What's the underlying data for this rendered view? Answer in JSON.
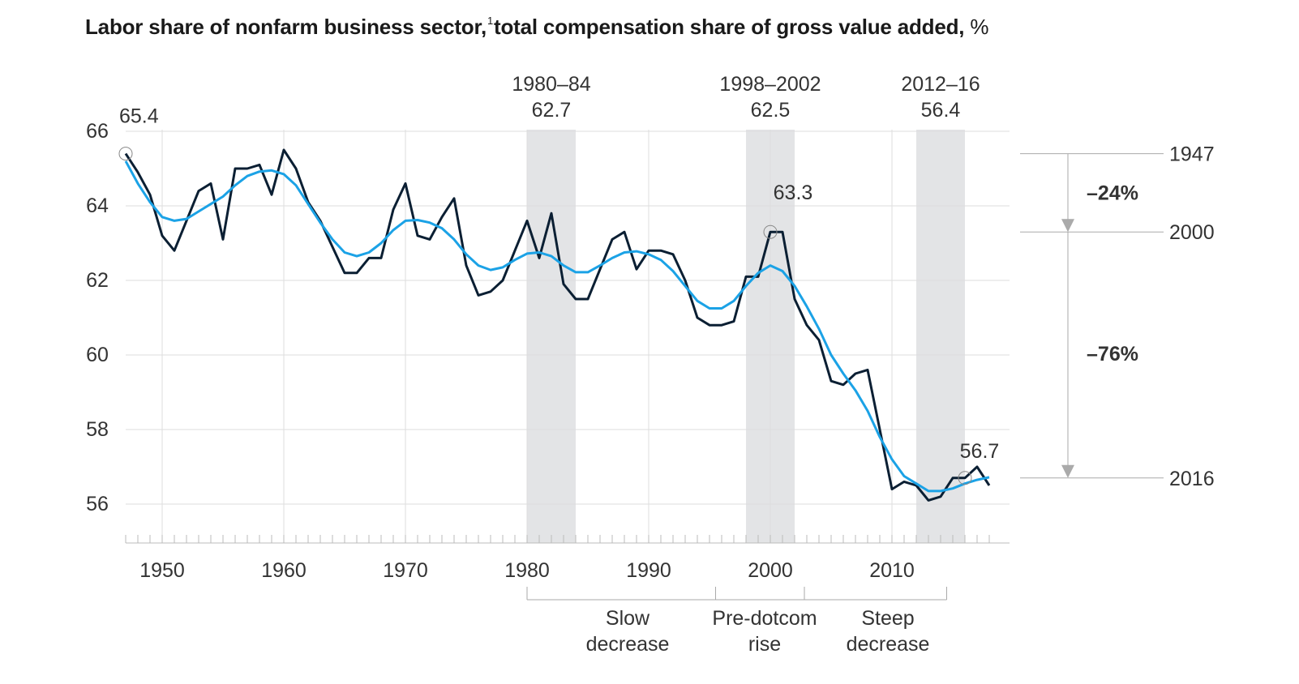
{
  "title": {
    "main": "Labor share of nonfarm business sector,",
    "footnote": "1",
    "rest": "total compensation share of gross value added,",
    "unit": "%"
  },
  "colors": {
    "actual": "#0b1f33",
    "trend": "#1ba2e6",
    "shade": "#e3e4e6",
    "grid": "#dddddd",
    "text": "#333333"
  },
  "chart_data": {
    "type": "line",
    "ylim": [
      55,
      66.5
    ],
    "xlim": [
      1946.5,
      2019
    ],
    "y_ticks": [
      "56",
      "58",
      "60",
      "62",
      "64",
      "66"
    ],
    "x_ticks": [
      "1950",
      "1960",
      "1970",
      "1980",
      "1990",
      "2000",
      "2010"
    ],
    "series": [
      {
        "key": "actual",
        "x": [
          1947,
          1948,
          1949,
          1950,
          1951,
          1952,
          1953,
          1954,
          1955,
          1956,
          1957,
          1958,
          1959,
          1960,
          1961,
          1962,
          1963,
          1964,
          1965,
          1966,
          1967,
          1968,
          1969,
          1970,
          1971,
          1972,
          1973,
          1974,
          1975,
          1976,
          1977,
          1978,
          1979,
          1980,
          1981,
          1982,
          1983,
          1984,
          1985,
          1986,
          1987,
          1988,
          1989,
          1990,
          1991,
          1992,
          1993,
          1994,
          1995,
          1996,
          1997,
          1998,
          1999,
          2000,
          2001,
          2002,
          2003,
          2004,
          2005,
          2006,
          2007,
          2008,
          2009,
          2010,
          2011,
          2012,
          2013,
          2014,
          2015,
          2016,
          2017,
          2018
        ],
        "y": [
          65.4,
          64.9,
          64.3,
          63.2,
          62.8,
          63.6,
          64.4,
          64.6,
          63.1,
          65.0,
          65.0,
          65.1,
          64.3,
          65.5,
          65.0,
          64.1,
          63.6,
          62.9,
          62.2,
          62.2,
          62.6,
          62.6,
          63.9,
          64.6,
          63.2,
          63.1,
          63.7,
          64.2,
          62.4,
          61.6,
          61.7,
          62.0,
          62.8,
          63.6,
          62.6,
          63.8,
          61.9,
          61.5,
          61.5,
          62.3,
          63.1,
          63.3,
          62.3,
          62.8,
          62.8,
          62.7,
          62.0,
          61.0,
          60.8,
          60.8,
          60.9,
          62.1,
          62.1,
          63.3,
          63.3,
          61.5,
          60.8,
          60.4,
          59.3,
          59.2,
          59.5,
          59.6,
          58.0,
          56.4,
          56.6,
          56.5,
          56.1,
          56.2,
          56.7,
          56.7,
          57.0,
          56.5
        ]
      },
      {
        "key": "trend",
        "x": [
          1947,
          1948,
          1949,
          1950,
          1951,
          1952,
          1953,
          1954,
          1955,
          1956,
          1957,
          1958,
          1959,
          1960,
          1961,
          1962,
          1963,
          1964,
          1965,
          1966,
          1967,
          1968,
          1969,
          1970,
          1971,
          1972,
          1973,
          1974,
          1975,
          1976,
          1977,
          1978,
          1979,
          1980,
          1981,
          1982,
          1983,
          1984,
          1985,
          1986,
          1987,
          1988,
          1989,
          1990,
          1991,
          1992,
          1993,
          1994,
          1995,
          1996,
          1997,
          1998,
          1999,
          2000,
          2001,
          2002,
          2003,
          2004,
          2005,
          2006,
          2007,
          2008,
          2009,
          2010,
          2011,
          2012,
          2013,
          2014,
          2015,
          2016,
          2017,
          2018
        ],
        "y": [
          65.2,
          64.6,
          64.1,
          63.7,
          63.6,
          63.65,
          63.85,
          64.05,
          64.25,
          64.55,
          64.8,
          64.92,
          64.95,
          64.85,
          64.55,
          64.05,
          63.55,
          63.1,
          62.75,
          62.65,
          62.75,
          63.0,
          63.35,
          63.6,
          63.62,
          63.55,
          63.4,
          63.1,
          62.7,
          62.4,
          62.28,
          62.35,
          62.55,
          62.72,
          62.75,
          62.65,
          62.4,
          62.22,
          62.22,
          62.4,
          62.6,
          62.75,
          62.78,
          62.7,
          62.55,
          62.25,
          61.85,
          61.45,
          61.25,
          61.25,
          61.45,
          61.85,
          62.2,
          62.4,
          62.25,
          61.85,
          61.3,
          60.7,
          60.0,
          59.5,
          59.05,
          58.5,
          57.8,
          57.2,
          56.75,
          56.55,
          56.35,
          56.35,
          56.42,
          56.55,
          56.65,
          56.72
        ]
      }
    ],
    "shaded_periods": [
      {
        "label": "1980–84",
        "value": "62.7",
        "start": 1980,
        "end": 1984
      },
      {
        "label": "1998–2002",
        "value": "62.5",
        "start": 1998,
        "end": 2002
      },
      {
        "label": "2012–16",
        "value": "56.4",
        "start": 2012,
        "end": 2016
      }
    ],
    "point_labels": [
      {
        "x": 1947,
        "y": 65.4,
        "label": "65.4"
      },
      {
        "x": 2000,
        "y": 63.3,
        "label": "63.3"
      },
      {
        "x": 2016,
        "y": 56.7,
        "label": "56.7"
      }
    ],
    "phases": [
      {
        "label": [
          "Slow",
          "decrease"
        ],
        "start": 1980,
        "end": 1995.5
      },
      {
        "label": [
          "Pre-dotcom",
          "rise"
        ],
        "start": 1995.5,
        "end": 2002.8
      },
      {
        "label": [
          "Steep",
          "decrease"
        ],
        "start": 2002.8,
        "end": 2014.5
      }
    ],
    "reference_lines": [
      {
        "year_label": "1947",
        "y": 65.4
      },
      {
        "year_label": "2000",
        "y": 63.3
      },
      {
        "year_label": "2016",
        "y": 56.7
      }
    ],
    "declines": [
      {
        "label": "–24%",
        "from": 65.4,
        "to": 63.3
      },
      {
        "label": "–76%",
        "from": 63.3,
        "to": 56.7
      }
    ]
  }
}
